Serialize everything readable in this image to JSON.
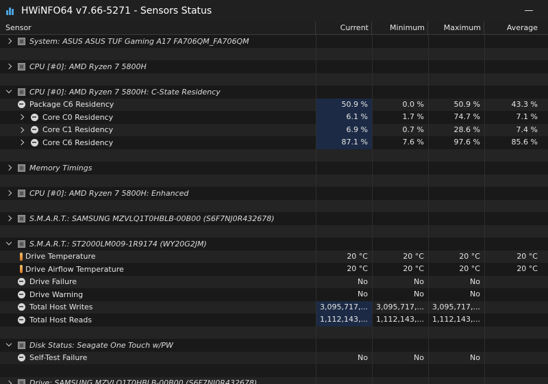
{
  "window": {
    "title": "HWiNFO64 v7.66-5271 - Sensors Status"
  },
  "columns": {
    "sensor": "Sensor",
    "current": "Current",
    "minimum": "Minimum",
    "maximum": "Maximum",
    "average": "Average"
  },
  "rows": [
    {
      "type": "group",
      "expanded": false,
      "label": "System: ASUS ASUS TUF Gaming A17 FA706QM_FA706QM"
    },
    {
      "type": "spacer"
    },
    {
      "type": "group",
      "expanded": false,
      "label": "CPU [#0]: AMD Ryzen 7 5800H"
    },
    {
      "type": "spacer"
    },
    {
      "type": "group",
      "expanded": true,
      "label": "CPU [#0]: AMD Ryzen 7 5800H: C-State Residency"
    },
    {
      "type": "sensor",
      "icon": "gauge",
      "indent": 1,
      "label": "Package C6 Residency",
      "current": "50.9 %",
      "minimum": "0.0 %",
      "maximum": "50.9 %",
      "average": "43.3 %",
      "highlight": true
    },
    {
      "type": "sensor",
      "icon": "gauge",
      "indent": 2,
      "label": "Core C0 Residency",
      "current": "6.1 %",
      "minimum": "1.7 %",
      "maximum": "74.7 %",
      "average": "7.1 %",
      "highlight": true
    },
    {
      "type": "sensor",
      "icon": "gauge",
      "indent": 2,
      "label": "Core C1 Residency",
      "current": "6.9 %",
      "minimum": "0.7 %",
      "maximum": "28.6 %",
      "average": "7.4 %",
      "highlight": true
    },
    {
      "type": "sensor",
      "icon": "gauge",
      "indent": 2,
      "label": "Core C6 Residency",
      "current": "87.1 %",
      "minimum": "7.6 %",
      "maximum": "97.6 %",
      "average": "85.6 %",
      "highlight": true
    },
    {
      "type": "spacer"
    },
    {
      "type": "group",
      "expanded": false,
      "label": "Memory Timings"
    },
    {
      "type": "spacer"
    },
    {
      "type": "group",
      "expanded": false,
      "label": "CPU [#0]: AMD Ryzen 7 5800H: Enhanced"
    },
    {
      "type": "spacer"
    },
    {
      "type": "group",
      "expanded": false,
      "label": "S.M.A.R.T.: SAMSUNG MZVLQ1T0HBLB-00B00 (S6F7NJ0R432678)"
    },
    {
      "type": "spacer"
    },
    {
      "type": "group",
      "expanded": true,
      "label": "S.M.A.R.T.: ST2000LM009-1R9174 (WY20G2JM)"
    },
    {
      "type": "sensor",
      "icon": "thermometer",
      "indent": 1,
      "label": "Drive Temperature",
      "current": "20 °C",
      "minimum": "20 °C",
      "maximum": "20 °C",
      "average": "20 °C",
      "highlight": false
    },
    {
      "type": "sensor",
      "icon": "thermometer",
      "indent": 1,
      "label": "Drive Airflow Temperature",
      "current": "20 °C",
      "minimum": "20 °C",
      "maximum": "20 °C",
      "average": "20 °C",
      "highlight": false
    },
    {
      "type": "sensor",
      "icon": "gauge",
      "indent": 1,
      "label": "Drive Failure",
      "current": "No",
      "minimum": "No",
      "maximum": "No",
      "average": "",
      "highlight": false
    },
    {
      "type": "sensor",
      "icon": "gauge",
      "indent": 1,
      "label": "Drive Warning",
      "current": "No",
      "minimum": "No",
      "maximum": "No",
      "average": "",
      "highlight": false
    },
    {
      "type": "sensor",
      "icon": "gauge",
      "indent": 1,
      "label": "Total Host Writes",
      "current": "3,095,717,...",
      "minimum": "3,095,717,...",
      "maximum": "3,095,717,...",
      "average": "",
      "highlight": true
    },
    {
      "type": "sensor",
      "icon": "gauge",
      "indent": 1,
      "label": "Total Host Reads",
      "current": "1,112,143,...",
      "minimum": "1,112,143,...",
      "maximum": "1,112,143,...",
      "average": "",
      "highlight": true
    },
    {
      "type": "spacer"
    },
    {
      "type": "group",
      "expanded": true,
      "label": "Disk Status: Seagate One Touch w/PW"
    },
    {
      "type": "sensor",
      "icon": "gauge",
      "indent": 1,
      "label": "Self-Test Failure",
      "current": "No",
      "minimum": "No",
      "maximum": "No",
      "average": "",
      "highlight": false
    },
    {
      "type": "spacer"
    },
    {
      "type": "group",
      "expanded": false,
      "label": "Drive: SAMSUNG MZVLQ1T0HBLB-00B00 (S6F7NJ0R432678)"
    }
  ]
}
